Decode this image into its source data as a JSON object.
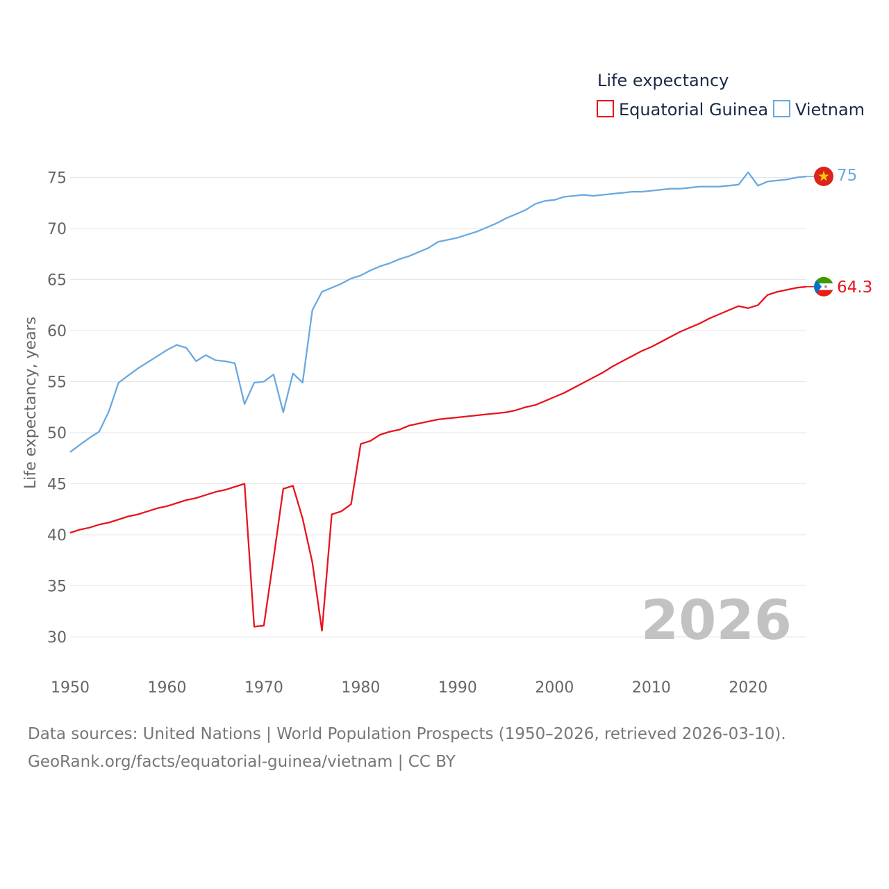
{
  "chart_data": {
    "type": "line",
    "legend_title": "Life expectancy",
    "ylabel": "Life expectancy, years",
    "ylim": [
      27,
      77
    ],
    "xlim": [
      1950,
      2026
    ],
    "yticks": [
      30,
      35,
      40,
      45,
      50,
      55,
      60,
      65,
      70,
      75
    ],
    "xticks": [
      1950,
      1960,
      1970,
      1980,
      1990,
      2000,
      2010,
      2020
    ],
    "year_label": "2026",
    "series": [
      {
        "name": "Equatorial Guinea",
        "color": "#e8141c",
        "end_label": "64.3",
        "flag": "equatorial-guinea-flag-icon",
        "points": [
          [
            1950,
            40.2
          ],
          [
            1951,
            40.5
          ],
          [
            1952,
            40.7
          ],
          [
            1953,
            41.0
          ],
          [
            1954,
            41.2
          ],
          [
            1955,
            41.5
          ],
          [
            1956,
            41.8
          ],
          [
            1957,
            42.0
          ],
          [
            1958,
            42.3
          ],
          [
            1959,
            42.6
          ],
          [
            1960,
            42.8
          ],
          [
            1961,
            43.1
          ],
          [
            1962,
            43.4
          ],
          [
            1963,
            43.6
          ],
          [
            1964,
            43.9
          ],
          [
            1965,
            44.2
          ],
          [
            1966,
            44.4
          ],
          [
            1967,
            44.7
          ],
          [
            1968,
            45.0
          ],
          [
            1969,
            31.0
          ],
          [
            1970,
            31.1
          ],
          [
            1971,
            37.7
          ],
          [
            1972,
            44.5
          ],
          [
            1973,
            44.8
          ],
          [
            1974,
            41.6
          ],
          [
            1975,
            37.3
          ],
          [
            1976,
            30.6
          ],
          [
            1977,
            42.0
          ],
          [
            1978,
            42.3
          ],
          [
            1979,
            43.0
          ],
          [
            1980,
            48.9
          ],
          [
            1981,
            49.2
          ],
          [
            1982,
            49.8
          ],
          [
            1983,
            50.1
          ],
          [
            1984,
            50.3
          ],
          [
            1985,
            50.7
          ],
          [
            1986,
            50.9
          ],
          [
            1987,
            51.1
          ],
          [
            1988,
            51.3
          ],
          [
            1989,
            51.4
          ],
          [
            1990,
            51.5
          ],
          [
            1991,
            51.6
          ],
          [
            1992,
            51.7
          ],
          [
            1993,
            51.8
          ],
          [
            1994,
            51.9
          ],
          [
            1995,
            52.0
          ],
          [
            1996,
            52.2
          ],
          [
            1997,
            52.5
          ],
          [
            1998,
            52.7
          ],
          [
            1999,
            53.1
          ],
          [
            2000,
            53.5
          ],
          [
            2001,
            53.9
          ],
          [
            2002,
            54.4
          ],
          [
            2003,
            54.9
          ],
          [
            2004,
            55.4
          ],
          [
            2005,
            55.9
          ],
          [
            2006,
            56.5
          ],
          [
            2007,
            57.0
          ],
          [
            2008,
            57.5
          ],
          [
            2009,
            58.0
          ],
          [
            2010,
            58.4
          ],
          [
            2011,
            58.9
          ],
          [
            2012,
            59.4
          ],
          [
            2013,
            59.9
          ],
          [
            2014,
            60.3
          ],
          [
            2015,
            60.7
          ],
          [
            2016,
            61.2
          ],
          [
            2017,
            61.6
          ],
          [
            2018,
            62.0
          ],
          [
            2019,
            62.4
          ],
          [
            2020,
            62.2
          ],
          [
            2021,
            62.5
          ],
          [
            2022,
            63.5
          ],
          [
            2023,
            63.8
          ],
          [
            2024,
            64.0
          ],
          [
            2025,
            64.2
          ],
          [
            2026,
            64.3
          ]
        ]
      },
      {
        "name": "Vietnam",
        "color": "#6aa9e0",
        "end_label": "75",
        "flag": "vietnam-flag-icon",
        "points": [
          [
            1950,
            48.1
          ],
          [
            1951,
            48.8
          ],
          [
            1952,
            49.5
          ],
          [
            1953,
            50.1
          ],
          [
            1954,
            52.1
          ],
          [
            1955,
            54.9
          ],
          [
            1956,
            55.6
          ],
          [
            1957,
            56.3
          ],
          [
            1958,
            56.9
          ],
          [
            1959,
            57.5
          ],
          [
            1960,
            58.1
          ],
          [
            1961,
            58.6
          ],
          [
            1962,
            58.3
          ],
          [
            1963,
            57.0
          ],
          [
            1964,
            57.6
          ],
          [
            1965,
            57.1
          ],
          [
            1966,
            57.0
          ],
          [
            1967,
            56.8
          ],
          [
            1968,
            52.8
          ],
          [
            1969,
            54.9
          ],
          [
            1970,
            55.0
          ],
          [
            1971,
            55.7
          ],
          [
            1972,
            52.0
          ],
          [
            1973,
            55.8
          ],
          [
            1974,
            54.9
          ],
          [
            1975,
            62.0
          ],
          [
            1976,
            63.8
          ],
          [
            1977,
            64.2
          ],
          [
            1978,
            64.6
          ],
          [
            1979,
            65.1
          ],
          [
            1980,
            65.4
          ],
          [
            1981,
            65.9
          ],
          [
            1982,
            66.3
          ],
          [
            1983,
            66.6
          ],
          [
            1984,
            67.0
          ],
          [
            1985,
            67.3
          ],
          [
            1986,
            67.7
          ],
          [
            1987,
            68.1
          ],
          [
            1988,
            68.7
          ],
          [
            1989,
            68.9
          ],
          [
            1990,
            69.1
          ],
          [
            1991,
            69.4
          ],
          [
            1992,
            69.7
          ],
          [
            1993,
            70.1
          ],
          [
            1994,
            70.5
          ],
          [
            1995,
            71.0
          ],
          [
            1996,
            71.4
          ],
          [
            1997,
            71.8
          ],
          [
            1998,
            72.4
          ],
          [
            1999,
            72.7
          ],
          [
            2000,
            72.8
          ],
          [
            2001,
            73.1
          ],
          [
            2002,
            73.2
          ],
          [
            2003,
            73.3
          ],
          [
            2004,
            73.2
          ],
          [
            2005,
            73.3
          ],
          [
            2006,
            73.4
          ],
          [
            2007,
            73.5
          ],
          [
            2008,
            73.6
          ],
          [
            2009,
            73.6
          ],
          [
            2010,
            73.7
          ],
          [
            2011,
            73.8
          ],
          [
            2012,
            73.9
          ],
          [
            2013,
            73.9
          ],
          [
            2014,
            74.0
          ],
          [
            2015,
            74.1
          ],
          [
            2016,
            74.1
          ],
          [
            2017,
            74.1
          ],
          [
            2018,
            74.2
          ],
          [
            2019,
            74.3
          ],
          [
            2020,
            75.5
          ],
          [
            2021,
            74.2
          ],
          [
            2022,
            74.6
          ],
          [
            2023,
            74.7
          ],
          [
            2024,
            74.8
          ],
          [
            2025,
            75.0
          ],
          [
            2026,
            75.1
          ]
        ]
      }
    ]
  },
  "footer": {
    "line1": "Data sources: United Nations | World Population Prospects (1950–2026, retrieved 2026-03-10).",
    "line2": "GeoRank.org/facts/equatorial-guinea/vietnam | CC BY"
  }
}
